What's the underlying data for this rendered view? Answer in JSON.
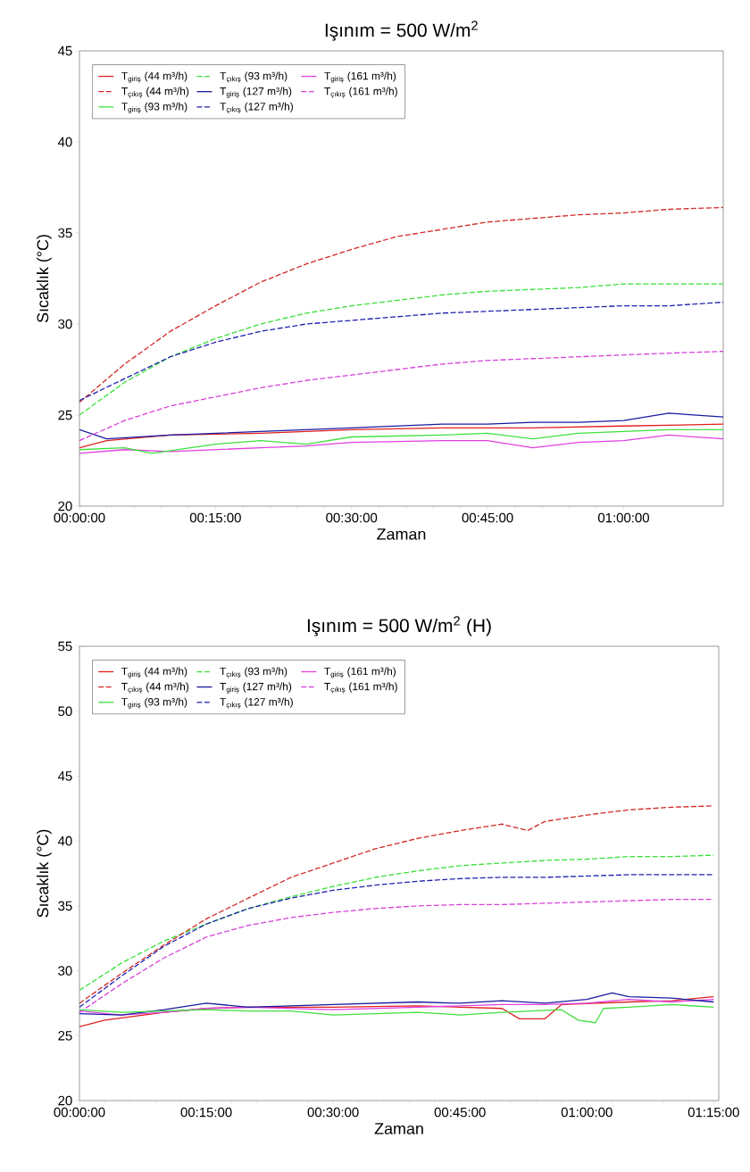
{
  "chart_data": [
    {
      "type": "line",
      "title": "Işınım = 500 W/m$^{2}$",
      "xlabel": "Zaman",
      "ylabel": "Sıcaklık (°C)",
      "xlim": [
        0,
        1.183
      ],
      "ylim": [
        20,
        45
      ],
      "xticks": [
        {
          "value": 0,
          "label": "00:00:00"
        },
        {
          "value": 0.25,
          "label": "00:15:00"
        },
        {
          "value": 0.5,
          "label": "00:30:00"
        },
        {
          "value": 0.75,
          "label": "00:45:00"
        },
        {
          "value": 1,
          "label": "01:00:00"
        }
      ],
      "yticks": [
        20,
        25,
        30,
        35,
        40,
        45
      ],
      "legend": "top left",
      "grid": false,
      "series": [
        {
          "name": "T$_{giriş}$ (44 m³/h)",
          "color": "#e02020",
          "line_style": "solid",
          "x": [
            0,
            0.05,
            0.167,
            0.333,
            0.5,
            0.667,
            0.833,
            1,
            1.183
          ],
          "values": [
            23.2,
            23.6,
            23.9,
            24.0,
            24.2,
            24.3,
            24.3,
            24.4,
            24.5
          ]
        },
        {
          "name": "T$_{çıkış}$ (44 m³/h)",
          "color": "#d02828",
          "line_style": "dashed",
          "x": [
            0,
            0.083,
            0.167,
            0.25,
            0.333,
            0.417,
            0.5,
            0.583,
            0.667,
            0.75,
            0.833,
            0.917,
            1,
            1.083,
            1.183
          ],
          "values": [
            25.7,
            27.8,
            29.6,
            31.0,
            32.3,
            33.3,
            34.1,
            34.8,
            35.2,
            35.6,
            35.8,
            36.0,
            36.1,
            36.3,
            36.4
          ]
        },
        {
          "name": "T$_{giriş}$ (93 m³/h)",
          "color": "#40e040",
          "line_style": "solid",
          "x": [
            0,
            0.083,
            0.133,
            0.25,
            0.333,
            0.417,
            0.5,
            0.667,
            0.75,
            0.833,
            0.917,
            1,
            1.083,
            1.183
          ],
          "values": [
            23.1,
            23.2,
            22.9,
            23.4,
            23.6,
            23.4,
            23.8,
            23.9,
            24.0,
            23.7,
            24.0,
            24.1,
            24.2,
            24.2
          ]
        },
        {
          "name": "T$_{çıkış}$ (93 m³/h)",
          "color": "#38e038",
          "line_style": "dashed",
          "x": [
            0,
            0.083,
            0.167,
            0.25,
            0.333,
            0.417,
            0.5,
            0.583,
            0.667,
            0.75,
            0.833,
            0.917,
            1,
            1.083,
            1.183
          ],
          "values": [
            25.0,
            26.8,
            28.2,
            29.2,
            30.0,
            30.6,
            31.0,
            31.3,
            31.6,
            31.8,
            31.9,
            32.0,
            32.2,
            32.2,
            32.2
          ]
        },
        {
          "name": "T$_{giriş}$ (127 m³/h)",
          "color": "#1a1aa0",
          "line_style": "solid",
          "x": [
            0,
            0.05,
            0.167,
            0.333,
            0.5,
            0.667,
            0.75,
            0.833,
            0.917,
            1,
            1.083,
            1.183
          ],
          "values": [
            24.2,
            23.7,
            23.9,
            24.1,
            24.3,
            24.5,
            24.5,
            24.6,
            24.6,
            24.7,
            25.1,
            24.9
          ]
        },
        {
          "name": "T$_{çıkış}$ (127 m³/h)",
          "color": "#2020b0",
          "line_style": "dashed",
          "x": [
            0,
            0.083,
            0.167,
            0.25,
            0.333,
            0.417,
            0.5,
            0.583,
            0.667,
            0.75,
            0.833,
            0.917,
            1,
            1.083,
            1.183
          ],
          "values": [
            25.8,
            27.0,
            28.2,
            29.0,
            29.6,
            30.0,
            30.2,
            30.4,
            30.6,
            30.7,
            30.8,
            30.9,
            31.0,
            31.0,
            31.2
          ]
        },
        {
          "name": "T$_{giriş}$ (161 m³/h)",
          "color": "#e040e0",
          "line_style": "solid",
          "x": [
            0,
            0.083,
            0.167,
            0.333,
            0.417,
            0.5,
            0.667,
            0.75,
            0.833,
            0.917,
            1,
            1.083,
            1.183
          ],
          "values": [
            22.9,
            23.1,
            23.0,
            23.2,
            23.3,
            23.5,
            23.6,
            23.6,
            23.2,
            23.5,
            23.6,
            23.9,
            23.7
          ]
        },
        {
          "name": "T$_{çıkış}$ (161 m³/h)",
          "color": "#d840d8",
          "line_style": "dashed",
          "x": [
            0,
            0.083,
            0.167,
            0.25,
            0.333,
            0.417,
            0.5,
            0.583,
            0.667,
            0.75,
            0.833,
            0.917,
            1,
            1.083,
            1.183
          ],
          "values": [
            23.6,
            24.7,
            25.5,
            26.0,
            26.5,
            26.9,
            27.2,
            27.5,
            27.8,
            28.0,
            28.1,
            28.2,
            28.3,
            28.4,
            28.5
          ]
        }
      ]
    },
    {
      "type": "line",
      "title": "Işınım = 500 W/m$^{2}$ (H)",
      "xlabel": "Zaman",
      "ylabel": "Sıcaklık (°C)",
      "xlim": [
        0,
        1.26
      ],
      "ylim": [
        20,
        55
      ],
      "xticks": [
        {
          "value": 0,
          "label": "00:00:00"
        },
        {
          "value": 0.25,
          "label": "00:15:00"
        },
        {
          "value": 0.5,
          "label": "00:30:00"
        },
        {
          "value": 0.75,
          "label": "00:45:00"
        },
        {
          "value": 1,
          "label": "01:00:00"
        },
        {
          "value": 1.25,
          "label": "01:15:00"
        }
      ],
      "yticks": [
        20,
        25,
        30,
        35,
        40,
        45,
        50,
        55
      ],
      "legend": "top left",
      "grid": false,
      "series": [
        {
          "name": "T$_{giriş}$ (44 m³/h)",
          "color": "#e02020",
          "line_style": "solid",
          "x": [
            0,
            0.05,
            0.167,
            0.25,
            0.333,
            0.5,
            0.667,
            0.833,
            0.867,
            0.917,
            0.95,
            1.083,
            1.167,
            1.25
          ],
          "values": [
            25.7,
            26.2,
            26.8,
            27.1,
            27.2,
            27.2,
            27.3,
            27.1,
            26.3,
            26.3,
            27.4,
            27.6,
            27.7,
            28.0
          ]
        },
        {
          "name": "T$_{çıkış}$ (44 m³/h)",
          "color": "#d02828",
          "line_style": "dashed",
          "x": [
            0,
            0.083,
            0.167,
            0.25,
            0.333,
            0.417,
            0.5,
            0.583,
            0.667,
            0.75,
            0.833,
            0.883,
            0.917,
            1,
            1.083,
            1.167,
            1.25
          ],
          "values": [
            27.5,
            29.8,
            32.0,
            34.0,
            35.6,
            37.2,
            38.3,
            39.4,
            40.2,
            40.8,
            41.3,
            40.8,
            41.5,
            42.0,
            42.4,
            42.6,
            42.7
          ]
        },
        {
          "name": "T$_{giriş}$ (93 m³/h)",
          "color": "#40e040",
          "line_style": "solid",
          "x": [
            0,
            0.083,
            0.25,
            0.333,
            0.417,
            0.5,
            0.667,
            0.75,
            0.833,
            0.95,
            0.983,
            1.017,
            1.033,
            1.083,
            1.167,
            1.25
          ],
          "values": [
            27.0,
            26.8,
            27.0,
            26.9,
            26.9,
            26.6,
            26.8,
            26.6,
            26.8,
            27.0,
            26.2,
            26.0,
            27.1,
            27.2,
            27.4,
            27.2
          ]
        },
        {
          "name": "T$_{çıkış}$ (93 m³/h)",
          "color": "#38e038",
          "line_style": "dashed",
          "x": [
            0,
            0.083,
            0.167,
            0.25,
            0.333,
            0.417,
            0.5,
            0.583,
            0.667,
            0.75,
            0.833,
            0.917,
            1,
            1.083,
            1.167,
            1.25
          ],
          "values": [
            28.5,
            30.6,
            32.3,
            33.6,
            34.8,
            35.7,
            36.5,
            37.2,
            37.7,
            38.1,
            38.3,
            38.5,
            38.6,
            38.8,
            38.8,
            38.9
          ]
        },
        {
          "name": "T$_{giriş}$ (127 m³/h)",
          "color": "#1a1aa0",
          "line_style": "solid",
          "x": [
            0,
            0.083,
            0.167,
            0.25,
            0.333,
            0.5,
            0.667,
            0.75,
            0.833,
            0.917,
            1,
            1.05,
            1.083,
            1.167,
            1.25
          ],
          "values": [
            26.7,
            26.6,
            27.0,
            27.5,
            27.2,
            27.4,
            27.6,
            27.5,
            27.7,
            27.5,
            27.8,
            28.3,
            28.0,
            27.9,
            27.6
          ]
        },
        {
          "name": "T$_{çıkış}$ (127 m³/h)",
          "color": "#2020b0",
          "line_style": "dashed",
          "x": [
            0,
            0.083,
            0.167,
            0.25,
            0.333,
            0.417,
            0.5,
            0.583,
            0.667,
            0.75,
            0.833,
            0.917,
            1,
            1.083,
            1.167,
            1.25
          ],
          "values": [
            27.2,
            29.6,
            31.9,
            33.6,
            34.8,
            35.6,
            36.2,
            36.6,
            36.9,
            37.1,
            37.2,
            37.2,
            37.3,
            37.4,
            37.4,
            37.4
          ]
        },
        {
          "name": "T$_{giriş}$ (161 m³/h)",
          "color": "#e040e0",
          "line_style": "solid",
          "x": [
            0,
            0.083,
            0.167,
            0.25,
            0.333,
            0.5,
            0.667,
            0.833,
            0.917,
            1,
            1.083,
            1.167,
            1.25
          ],
          "values": [
            26.9,
            26.6,
            26.8,
            27.1,
            27.2,
            27.0,
            27.2,
            27.4,
            27.4,
            27.5,
            27.8,
            27.6,
            27.8
          ]
        },
        {
          "name": "T$_{çıkış}$ (161 m³/h)",
          "color": "#d840d8",
          "line_style": "dashed",
          "x": [
            0,
            0.083,
            0.167,
            0.25,
            0.333,
            0.417,
            0.5,
            0.583,
            0.667,
            0.75,
            0.833,
            0.917,
            1,
            1.083,
            1.167,
            1.25
          ],
          "values": [
            26.8,
            29.0,
            31.0,
            32.6,
            33.5,
            34.1,
            34.5,
            34.8,
            35.0,
            35.1,
            35.1,
            35.2,
            35.3,
            35.4,
            35.5,
            35.5
          ]
        }
      ]
    }
  ]
}
